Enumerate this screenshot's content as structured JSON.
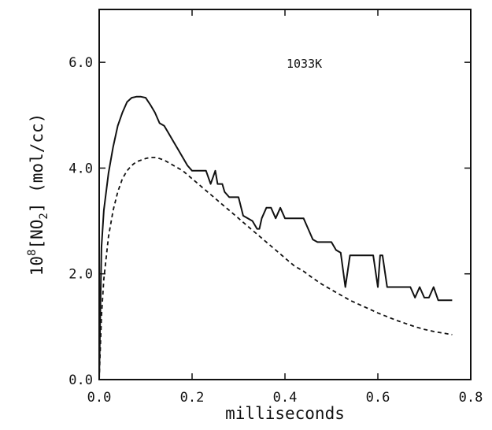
{
  "chart_data": {
    "type": "line",
    "xlabel": "milliseconds",
    "ylabel": {
      "prefix": "10",
      "exponent": "8",
      "species_open": "[NO",
      "species_subscript": "2",
      "species_close": "]",
      "units": " (mol/cc)"
    },
    "annotation": "1033K",
    "xlim": [
      0.0,
      0.8
    ],
    "ylim": [
      0.0,
      7.0
    ],
    "xticks": [
      {
        "value": 0.0,
        "label": "0.0"
      },
      {
        "value": 0.2,
        "label": "0.2"
      },
      {
        "value": 0.4,
        "label": "0.4"
      },
      {
        "value": 0.6,
        "label": "0.6"
      },
      {
        "value": 0.8,
        "label": "0.8"
      }
    ],
    "yticks": [
      {
        "value": 0.0,
        "label": "0.0"
      },
      {
        "value": 2.0,
        "label": "2.0"
      },
      {
        "value": 4.0,
        "label": "4.0"
      },
      {
        "value": 6.0,
        "label": "6.0"
      }
    ],
    "grid": false,
    "series": [
      {
        "style": "solid",
        "color": "#111111",
        "x": [
          0.0,
          0.005,
          0.01,
          0.02,
          0.03,
          0.04,
          0.05,
          0.06,
          0.07,
          0.08,
          0.09,
          0.1,
          0.11,
          0.12,
          0.13,
          0.14,
          0.15,
          0.16,
          0.17,
          0.18,
          0.19,
          0.2,
          0.205,
          0.21,
          0.22,
          0.23,
          0.24,
          0.25,
          0.255,
          0.26,
          0.265,
          0.27,
          0.28,
          0.29,
          0.3,
          0.31,
          0.32,
          0.33,
          0.34,
          0.345,
          0.35,
          0.36,
          0.37,
          0.38,
          0.39,
          0.4,
          0.41,
          0.42,
          0.43,
          0.44,
          0.45,
          0.46,
          0.47,
          0.48,
          0.49,
          0.5,
          0.51,
          0.52,
          0.53,
          0.54,
          0.55,
          0.56,
          0.57,
          0.58,
          0.59,
          0.6,
          0.605,
          0.61,
          0.62,
          0.63,
          0.64,
          0.65,
          0.66,
          0.67,
          0.68,
          0.69,
          0.7,
          0.71,
          0.72,
          0.73,
          0.74,
          0.75,
          0.76
        ],
        "y": [
          0.0,
          2.5,
          3.2,
          3.9,
          4.4,
          4.8,
          5.05,
          5.25,
          5.33,
          5.35,
          5.35,
          5.33,
          5.2,
          5.05,
          4.85,
          4.8,
          4.65,
          4.5,
          4.35,
          4.2,
          4.05,
          3.95,
          3.95,
          3.95,
          3.95,
          3.95,
          3.7,
          3.95,
          3.7,
          3.7,
          3.7,
          3.55,
          3.45,
          3.45,
          3.45,
          3.1,
          3.05,
          3.0,
          2.85,
          2.85,
          3.05,
          3.25,
          3.25,
          3.05,
          3.25,
          3.05,
          3.05,
          3.05,
          3.05,
          3.05,
          2.85,
          2.65,
          2.6,
          2.6,
          2.6,
          2.6,
          2.45,
          2.4,
          1.75,
          2.35,
          2.35,
          2.35,
          2.35,
          2.35,
          2.35,
          1.75,
          2.35,
          2.35,
          1.75,
          1.75,
          1.75,
          1.75,
          1.75,
          1.75,
          1.55,
          1.75,
          1.55,
          1.55,
          1.75,
          1.5,
          1.5,
          1.5,
          1.5
        ]
      },
      {
        "style": "dashed",
        "color": "#111111",
        "x": [
          0.0,
          0.005,
          0.01,
          0.02,
          0.03,
          0.04,
          0.05,
          0.06,
          0.07,
          0.08,
          0.09,
          0.1,
          0.11,
          0.12,
          0.13,
          0.14,
          0.15,
          0.16,
          0.18,
          0.2,
          0.22,
          0.24,
          0.26,
          0.28,
          0.3,
          0.32,
          0.34,
          0.36,
          0.38,
          0.4,
          0.42,
          0.44,
          0.46,
          0.48,
          0.5,
          0.52,
          0.54,
          0.56,
          0.58,
          0.6,
          0.62,
          0.64,
          0.66,
          0.68,
          0.7,
          0.72,
          0.74,
          0.76
        ],
        "y": [
          0.0,
          1.2,
          1.9,
          2.7,
          3.2,
          3.55,
          3.8,
          3.95,
          4.05,
          4.12,
          4.15,
          4.18,
          4.2,
          4.2,
          4.18,
          4.15,
          4.1,
          4.05,
          3.95,
          3.8,
          3.65,
          3.5,
          3.35,
          3.2,
          3.05,
          2.9,
          2.75,
          2.6,
          2.45,
          2.3,
          2.15,
          2.05,
          1.92,
          1.8,
          1.7,
          1.6,
          1.5,
          1.42,
          1.34,
          1.26,
          1.19,
          1.12,
          1.06,
          1.0,
          0.95,
          0.91,
          0.88,
          0.85
        ]
      }
    ]
  }
}
